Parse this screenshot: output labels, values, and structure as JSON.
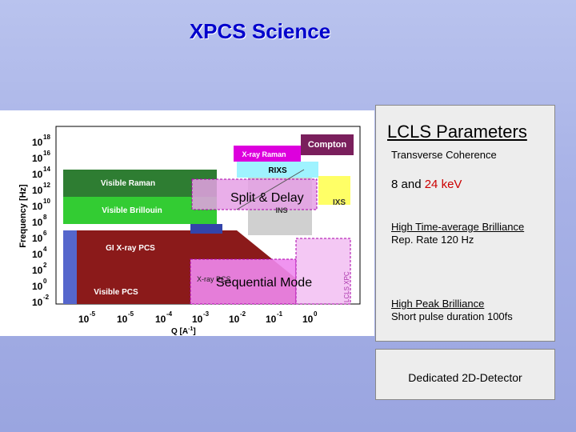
{
  "slide": {
    "title": "XPCS Science"
  },
  "parameters_panel": {
    "title": "LCLS Parameters",
    "coherence_heading": "Transverse Coherence",
    "energy_text": "8 and",
    "energy_value": "24 keV",
    "brilliance_heading": "High Time-average Brilliance",
    "rep_rate": "Rep. Rate   120 Hz",
    "peak_heading": "High Peak Brilliance",
    "pulse_duration": "Short pulse duration  100fs"
  },
  "detector_panel": {
    "label": "Dedicated 2D-Detector"
  },
  "diagram": {
    "y_axis_label": "Frequency [Hz]",
    "x_axis_label": "Q [A",
    "x_axis_label_exp": "-1",
    "x_axis_label_end": "]",
    "y_ticks": [
      {
        "base": "10",
        "exp": "18"
      },
      {
        "base": "10",
        "exp": "16"
      },
      {
        "base": "10",
        "exp": "14"
      },
      {
        "base": "10",
        "exp": "12"
      },
      {
        "base": "10",
        "exp": "10"
      },
      {
        "base": "10",
        "exp": "8"
      },
      {
        "base": "10",
        "exp": "6"
      },
      {
        "base": "10",
        "exp": "4"
      },
      {
        "base": "10",
        "exp": "2"
      },
      {
        "base": "10",
        "exp": "0"
      },
      {
        "base": "10",
        "exp": "-2"
      }
    ],
    "x_ticks": [
      {
        "base": "10",
        "exp": "-5"
      },
      {
        "base": "10",
        "exp": "-5"
      },
      {
        "base": "10",
        "exp": "-4"
      },
      {
        "base": "10",
        "exp": "-3"
      },
      {
        "base": "10",
        "exp": "-2"
      },
      {
        "base": "10",
        "exp": "-1"
      },
      {
        "base": "10",
        "exp": "0"
      }
    ],
    "regions": {
      "compton": "Compton",
      "xray_raman": "X-ray Raman",
      "rixs": "RIXS",
      "visible_raman": "Visible Raman",
      "visible_brillouin": "Visible Brillouin",
      "ixs": "IXS",
      "ins": "INS",
      "gi_xray_pcs": "GI X-ray PCS",
      "visible_pcs": "Visible PCS",
      "xray_pcs": "X-ray PCS",
      "lcls_xpcs": "LCLS XPCS",
      "lcls_xpcs_faint": "LCLS XPC"
    },
    "overlays": {
      "split_delay": "Split & Delay",
      "sequential_mode": "Sequential Mode"
    },
    "colors": {
      "compton": "#7a1f5c",
      "xray_raman": "#dd00dd",
      "rixs": "#9ff3ff",
      "visible_raman": "#2e7d32",
      "visible_brillouin": "#33cc33",
      "ixs": "#ffff66",
      "ins": "#d0d0d0",
      "gi_xray_pcs": "#8b1a1a",
      "visible_pcs": "#5566cc",
      "split_delay": "#e5a0e5",
      "sequential_mode": "#ee88ee",
      "title": "#0000cc",
      "highlight": "#cc0000"
    }
  }
}
